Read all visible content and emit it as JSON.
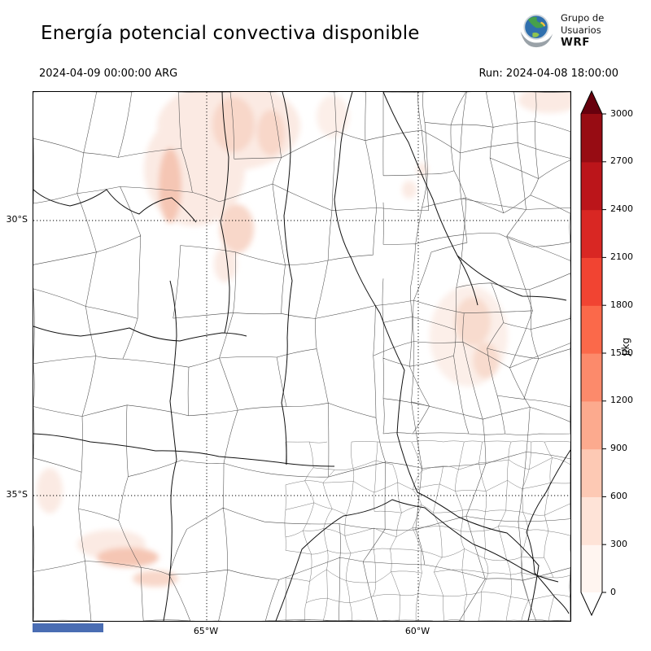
{
  "header": {
    "title": "Energía potencial convectiva disponible",
    "logo": {
      "line1": "Grupo de",
      "line2": "Usuarios",
      "line3": "WRF"
    },
    "valid_time": "2024-04-09 00:00:00 ARG",
    "run_time": "Run: 2024-04-08 18:00:00"
  },
  "map": {
    "lat_labels": [
      "30°S",
      "35°S"
    ],
    "lon_labels": [
      "65°W",
      "60°W"
    ]
  },
  "colorbar": {
    "unit": "J/kg",
    "ticks_top_to_bottom": [
      "3000",
      "2700",
      "2400",
      "2100",
      "1800",
      "1500",
      "1200",
      "900",
      "600",
      "300",
      "0"
    ],
    "colors_bottom_to_top": [
      "#fff5f0",
      "#fee3d7",
      "#fdc9b4",
      "#fcaa8e",
      "#fc8a6b",
      "#fb694a",
      "#f14432",
      "#d92723",
      "#bb151a",
      "#970c13"
    ],
    "over_color": "#67000d",
    "under_color": "#ffffff"
  },
  "footer": {
    "bar_color": "#4a6db3"
  },
  "chart_data": {
    "type": "heatmap",
    "title": "Energía potencial convectiva disponible",
    "units": "J/kg",
    "colorbar_levels": [
      0,
      300,
      600,
      900,
      1200,
      1500,
      1800,
      2100,
      2400,
      2700,
      3000
    ],
    "lat_gridlines": [
      "30°S",
      "35°S"
    ],
    "lon_gridlines": [
      "65°W",
      "60°W"
    ],
    "valid_time": "2024-04-09 00:00:00 ARG",
    "run": "Run: 2024-04-08 18:00:00",
    "shaded_regions": [
      {
        "area": "northwest / top of map",
        "approx_value_range_jkg": [
          0,
          600
        ]
      },
      {
        "area": "east-central",
        "approx_value_range_jkg": [
          0,
          300
        ]
      },
      {
        "area": "southwest coastal (bottom left)",
        "approx_value_range_jkg": [
          0,
          600
        ]
      }
    ]
  }
}
